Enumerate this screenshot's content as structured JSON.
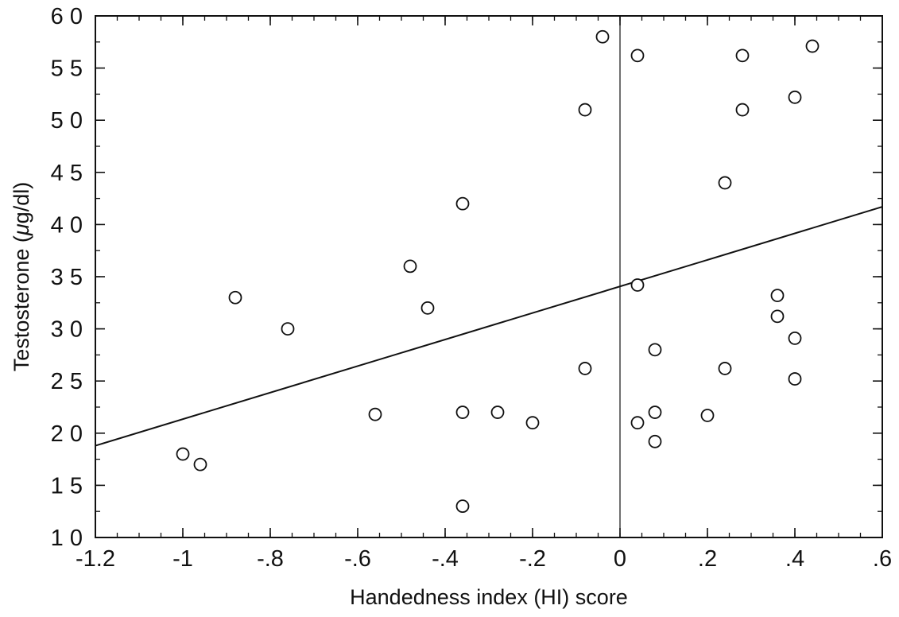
{
  "chart_data": {
    "type": "scatter",
    "xlabel": "Handedness index (HI) score",
    "ylabel_prefix": "Testosterone (",
    "ylabel_unit_symbol": "μ",
    "ylabel_suffix": "g/dl)",
    "xlim": [
      -1.2,
      0.6
    ],
    "ylim": [
      10,
      60
    ],
    "x_ticks": [
      -1.2,
      -1.0,
      -0.8,
      -0.6,
      -0.4,
      -0.2,
      0,
      0.2,
      0.4,
      0.6
    ],
    "x_tick_labels": [
      "-1.2",
      "-1",
      "-.8",
      "-.6",
      "-.4",
      "-.2",
      "0",
      ".2",
      ".4",
      ".6"
    ],
    "y_ticks": [
      10,
      15,
      20,
      25,
      30,
      35,
      40,
      45,
      50,
      55,
      60
    ],
    "y_tick_labels": [
      "1 0",
      "1 5",
      "2 0",
      "2 5",
      "3 0",
      "3 5",
      "4 0",
      "4 5",
      "5 0",
      "5 5",
      "6 0"
    ],
    "reference_line_x": 0,
    "regression_line": {
      "x": [
        -1.2,
        0.6
      ],
      "y": [
        18.8,
        41.7
      ]
    },
    "points": [
      {
        "x": -1.0,
        "y": 18
      },
      {
        "x": -0.96,
        "y": 17
      },
      {
        "x": -0.88,
        "y": 33
      },
      {
        "x": -0.76,
        "y": 30
      },
      {
        "x": -0.56,
        "y": 21.8
      },
      {
        "x": -0.48,
        "y": 36
      },
      {
        "x": -0.44,
        "y": 32
      },
      {
        "x": -0.36,
        "y": 42
      },
      {
        "x": -0.36,
        "y": 22
      },
      {
        "x": -0.36,
        "y": 13
      },
      {
        "x": -0.28,
        "y": 22
      },
      {
        "x": -0.2,
        "y": 21
      },
      {
        "x": -0.08,
        "y": 26.2
      },
      {
        "x": -0.08,
        "y": 51
      },
      {
        "x": -0.04,
        "y": 58
      },
      {
        "x": 0.04,
        "y": 56.2
      },
      {
        "x": 0.04,
        "y": 34.2
      },
      {
        "x": 0.04,
        "y": 21
      },
      {
        "x": 0.08,
        "y": 28
      },
      {
        "x": 0.08,
        "y": 22
      },
      {
        "x": 0.08,
        "y": 19.2
      },
      {
        "x": 0.2,
        "y": 21.7
      },
      {
        "x": 0.24,
        "y": 44
      },
      {
        "x": 0.24,
        "y": 26.2
      },
      {
        "x": 0.28,
        "y": 56.2
      },
      {
        "x": 0.28,
        "y": 51
      },
      {
        "x": 0.36,
        "y": 33.2
      },
      {
        "x": 0.36,
        "y": 31.2
      },
      {
        "x": 0.4,
        "y": 52.2
      },
      {
        "x": 0.4,
        "y": 29.1
      },
      {
        "x": 0.4,
        "y": 25.2
      },
      {
        "x": 0.44,
        "y": 57.1
      }
    ],
    "grid": false,
    "legend": "none",
    "colors": {
      "ink": "#111111",
      "background": "#ffffff"
    }
  }
}
